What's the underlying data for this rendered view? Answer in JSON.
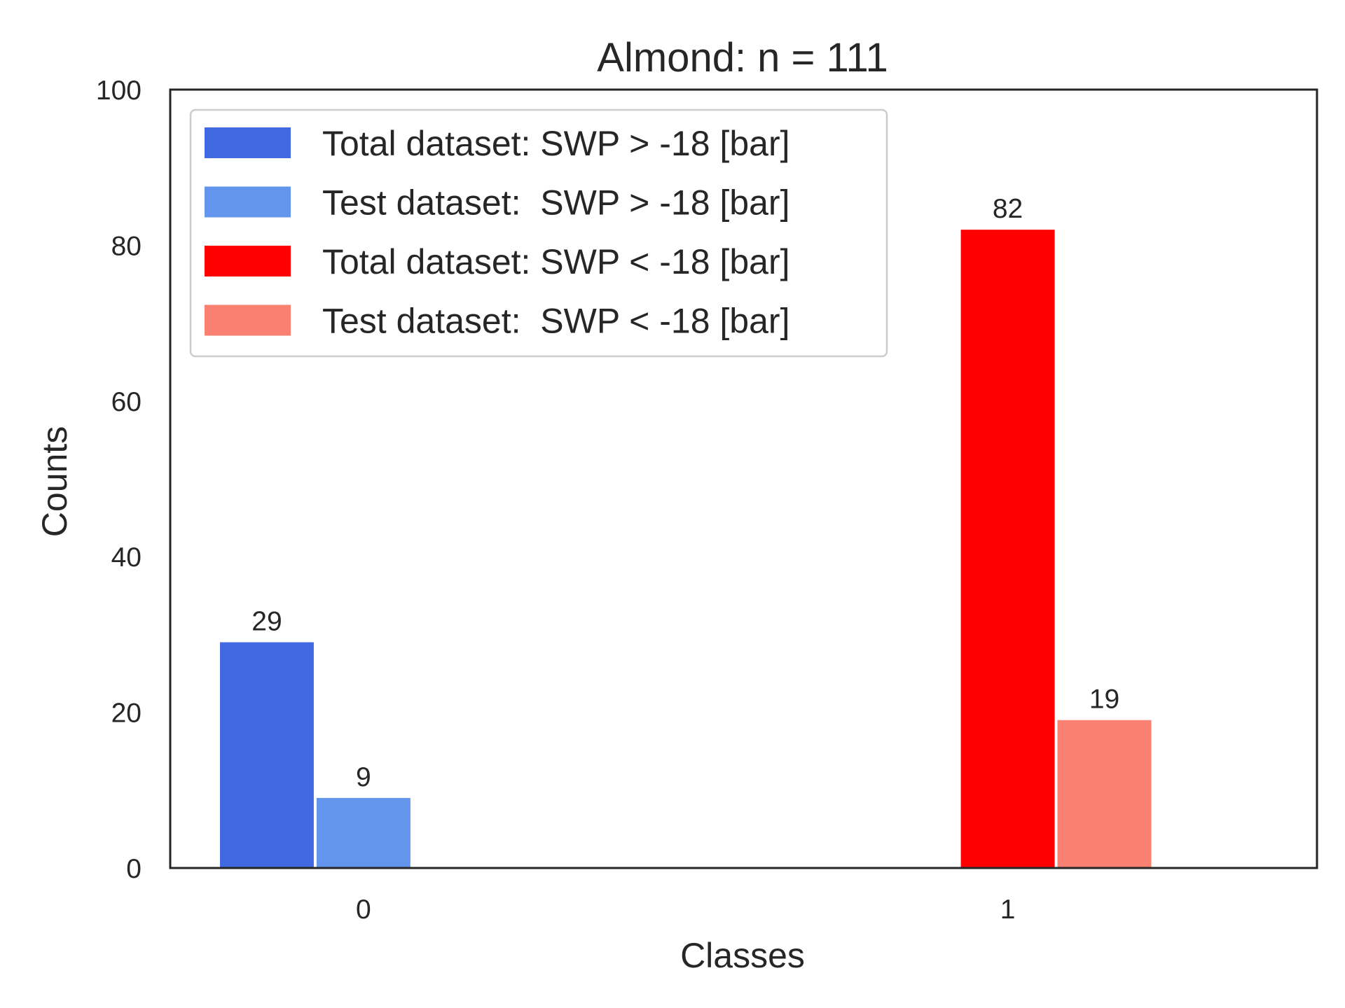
{
  "chart_data": {
    "type": "bar",
    "title": "Almond:  n = 111",
    "xlabel": "Classes",
    "ylabel": "Counts",
    "ylim": [
      0,
      100
    ],
    "yticks": [
      0,
      20,
      40,
      60,
      80,
      100
    ],
    "xticks": [
      0,
      1
    ],
    "grid": false,
    "legend_position": "top-left",
    "series": [
      {
        "name": "Total dataset: SWP > -18 [bar]",
        "color": "#4169e1",
        "x": [
          0
        ],
        "values": [
          29
        ],
        "offset": -1.5
      },
      {
        "name": "Test dataset:  SWP > -18 [bar]",
        "color": "#6495ed",
        "x": [
          0
        ],
        "values": [
          9
        ],
        "offset": -0.5
      },
      {
        "name": "Total dataset: SWP < -18 [bar]",
        "color": "#ff0000",
        "x": [
          1
        ],
        "values": [
          82
        ],
        "offset": -0.5
      },
      {
        "name": "Test dataset:  SWP < -18 [bar]",
        "color": "#fa8072",
        "x": [
          1
        ],
        "values": [
          19
        ],
        "offset": 0.5
      }
    ]
  }
}
